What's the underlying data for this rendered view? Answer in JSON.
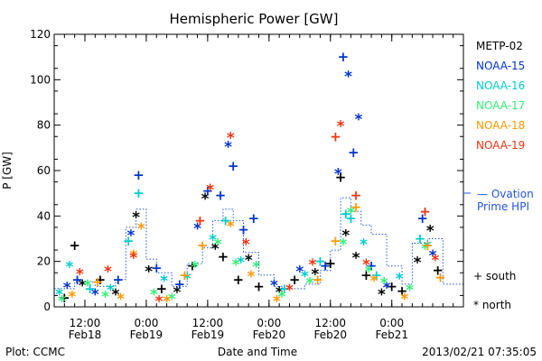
{
  "chart_data": {
    "type": "scatter",
    "title": "Hemispheric Power [GW]",
    "ylabel": "P [GW]",
    "xlabel": "Date and Time",
    "ylim": [
      0,
      120
    ],
    "xlim": [
      "2013-02-18T06:00",
      "2013-02-21T14:00"
    ],
    "yticks": [
      0,
      20,
      40,
      60,
      80,
      100,
      120
    ],
    "xticks": [
      {
        "t": "2013-02-18T12:00",
        "l1": "12:00",
        "l2": "Feb18"
      },
      {
        "t": "2013-02-19T00:00",
        "l1": "0:00",
        "l2": "Feb19"
      },
      {
        "t": "2013-02-19T12:00",
        "l1": "12:00",
        "l2": "Feb19"
      },
      {
        "t": "2013-02-20T00:00",
        "l1": "0:00",
        "l2": "Feb20"
      },
      {
        "t": "2013-02-20T12:00",
        "l1": "12:00",
        "l2": "Feb20"
      },
      {
        "t": "2013-02-21T00:00",
        "l1": "0:00",
        "l2": "Feb21"
      }
    ],
    "legend_position": "right",
    "series": [
      {
        "name": "METP-02",
        "color": "#000000",
        "points": [
          {
            "x": "2013-02-18T08:00",
            "y": 4,
            "m": "+"
          },
          {
            "x": "2013-02-18T10:00",
            "y": 27,
            "m": "+"
          },
          {
            "x": "2013-02-18T11:30",
            "y": 10,
            "m": "*"
          },
          {
            "x": "2013-02-18T15:00",
            "y": 12,
            "m": "+"
          },
          {
            "x": "2013-02-18T18:00",
            "y": 6,
            "m": "*"
          },
          {
            "x": "2013-02-18T22:00",
            "y": 40,
            "m": "*"
          },
          {
            "x": "2013-02-19T00:30",
            "y": 16,
            "m": "*"
          },
          {
            "x": "2013-02-19T03:00",
            "y": 8,
            "m": "+"
          },
          {
            "x": "2013-02-19T06:00",
            "y": 7,
            "m": "*"
          },
          {
            "x": "2013-02-19T09:00",
            "y": 18,
            "m": "+"
          },
          {
            "x": "2013-02-19T11:30",
            "y": 48,
            "m": "*"
          },
          {
            "x": "2013-02-19T13:30",
            "y": 26,
            "m": "*"
          },
          {
            "x": "2013-02-19T15:00",
            "y": 22,
            "m": "+"
          },
          {
            "x": "2013-02-19T18:00",
            "y": 12,
            "m": "+"
          },
          {
            "x": "2013-02-19T20:00",
            "y": 21,
            "m": "*"
          },
          {
            "x": "2013-02-19T22:00",
            "y": 9,
            "m": "+"
          },
          {
            "x": "2013-02-20T02:00",
            "y": 7,
            "m": "*"
          },
          {
            "x": "2013-02-20T05:00",
            "y": 12,
            "m": "+"
          },
          {
            "x": "2013-02-20T09:00",
            "y": 15,
            "m": "*"
          },
          {
            "x": "2013-02-20T12:00",
            "y": 19,
            "m": "+"
          },
          {
            "x": "2013-02-20T14:00",
            "y": 57,
            "m": "+"
          },
          {
            "x": "2013-02-20T15:00",
            "y": 32,
            "m": "*"
          },
          {
            "x": "2013-02-20T17:00",
            "y": 22,
            "m": "*"
          },
          {
            "x": "2013-02-20T19:00",
            "y": 14,
            "m": "+"
          },
          {
            "x": "2013-02-20T22:00",
            "y": 6,
            "m": "*"
          },
          {
            "x": "2013-02-21T00:00",
            "y": 9,
            "m": "+"
          },
          {
            "x": "2013-02-21T02:00",
            "y": 7,
            "m": "+"
          },
          {
            "x": "2013-02-21T05:00",
            "y": 20,
            "m": "*"
          },
          {
            "x": "2013-02-21T07:30",
            "y": 34,
            "m": "*"
          },
          {
            "x": "2013-02-21T09:00",
            "y": 16,
            "m": "+"
          }
        ]
      },
      {
        "name": "NOAA-15",
        "color": "#0033cc",
        "points": [
          {
            "x": "2013-02-18T08:30",
            "y": 9,
            "m": "*"
          },
          {
            "x": "2013-02-18T10:30",
            "y": 12,
            "m": "+"
          },
          {
            "x": "2013-02-18T14:00",
            "y": 6,
            "m": "*"
          },
          {
            "x": "2013-02-18T18:30",
            "y": 12,
            "m": "+"
          },
          {
            "x": "2013-02-18T21:00",
            "y": 32,
            "m": "*"
          },
          {
            "x": "2013-02-18T22:30",
            "y": 58,
            "m": "+"
          },
          {
            "x": "2013-02-19T02:00",
            "y": 17,
            "m": "+"
          },
          {
            "x": "2013-02-19T06:30",
            "y": 10,
            "m": "+"
          },
          {
            "x": "2013-02-19T10:00",
            "y": 35,
            "m": "*"
          },
          {
            "x": "2013-02-19T12:00",
            "y": 51,
            "m": "+"
          },
          {
            "x": "2013-02-19T14:30",
            "y": 49,
            "m": "+"
          },
          {
            "x": "2013-02-19T16:00",
            "y": 71,
            "m": "*"
          },
          {
            "x": "2013-02-19T17:00",
            "y": 62,
            "m": "+"
          },
          {
            "x": "2013-02-19T19:00",
            "y": 34,
            "m": "+"
          },
          {
            "x": "2013-02-19T21:00",
            "y": 39,
            "m": "+"
          },
          {
            "x": "2013-02-20T01:00",
            "y": 10,
            "m": "*"
          },
          {
            "x": "2013-02-20T06:00",
            "y": 16,
            "m": "*"
          },
          {
            "x": "2013-02-20T11:00",
            "y": 18,
            "m": "+"
          },
          {
            "x": "2013-02-20T13:30",
            "y": 59,
            "m": "*"
          },
          {
            "x": "2013-02-20T14:30",
            "y": 110,
            "m": "+"
          },
          {
            "x": "2013-02-20T15:30",
            "y": 102,
            "m": "*"
          },
          {
            "x": "2013-02-20T16:30",
            "y": 68,
            "m": "+"
          },
          {
            "x": "2013-02-20T17:30",
            "y": 83,
            "m": "*"
          },
          {
            "x": "2013-02-20T20:00",
            "y": 18,
            "m": "+"
          },
          {
            "x": "2013-02-20T23:00",
            "y": 9,
            "m": "*"
          },
          {
            "x": "2013-02-21T06:00",
            "y": 39,
            "m": "+"
          },
          {
            "x": "2013-02-21T08:00",
            "y": 23,
            "m": "*"
          }
        ]
      },
      {
        "name": "NOAA-16",
        "color": "#00cccc",
        "points": [
          {
            "x": "2013-02-18T07:00",
            "y": 6,
            "m": "*"
          },
          {
            "x": "2013-02-18T09:00",
            "y": 18,
            "m": "*"
          },
          {
            "x": "2013-02-18T13:00",
            "y": 8,
            "m": "+"
          },
          {
            "x": "2013-02-18T17:00",
            "y": 8,
            "m": "*"
          },
          {
            "x": "2013-02-18T20:30",
            "y": 29,
            "m": "+"
          },
          {
            "x": "2013-02-18T22:30",
            "y": 50,
            "m": "+"
          },
          {
            "x": "2013-02-19T03:30",
            "y": 12,
            "m": "*"
          },
          {
            "x": "2013-02-19T08:00",
            "y": 13,
            "m": "*"
          },
          {
            "x": "2013-02-19T13:00",
            "y": 30,
            "m": "*"
          },
          {
            "x": "2013-02-19T15:30",
            "y": 38,
            "m": "+"
          },
          {
            "x": "2013-02-19T18:30",
            "y": 20,
            "m": "*"
          },
          {
            "x": "2013-02-20T03:00",
            "y": 8,
            "m": "+"
          },
          {
            "x": "2013-02-20T07:00",
            "y": 14,
            "m": "*"
          },
          {
            "x": "2013-02-20T10:00",
            "y": 20,
            "m": "+"
          },
          {
            "x": "2013-02-20T15:00",
            "y": 41,
            "m": "+"
          },
          {
            "x": "2013-02-20T16:00",
            "y": 39,
            "m": "+"
          },
          {
            "x": "2013-02-20T18:30",
            "y": 28,
            "m": "*"
          },
          {
            "x": "2013-02-20T21:00",
            "y": 14,
            "m": "+"
          },
          {
            "x": "2013-02-21T01:30",
            "y": 13,
            "m": "*"
          },
          {
            "x": "2013-02-21T05:30",
            "y": 30,
            "m": "+"
          },
          {
            "x": "2013-02-21T07:00",
            "y": 27,
            "m": "*"
          }
        ]
      },
      {
        "name": "NOAA-17",
        "color": "#33ee77",
        "points": [
          {
            "x": "2013-02-18T07:30",
            "y": 3,
            "m": "*"
          },
          {
            "x": "2013-02-18T12:30",
            "y": 10,
            "m": "*"
          },
          {
            "x": "2013-02-18T16:00",
            "y": 5,
            "m": "*"
          },
          {
            "x": "2013-02-19T01:30",
            "y": 6,
            "m": "*"
          },
          {
            "x": "2013-02-19T05:00",
            "y": 4,
            "m": "*"
          },
          {
            "x": "2013-02-19T09:30",
            "y": 18,
            "m": "*"
          },
          {
            "x": "2013-02-19T14:00",
            "y": 28,
            "m": "*"
          },
          {
            "x": "2013-02-19T17:30",
            "y": 19,
            "m": "*"
          },
          {
            "x": "2013-02-19T21:30",
            "y": 18,
            "m": "*"
          },
          {
            "x": "2013-02-20T02:30",
            "y": 5,
            "m": "*"
          },
          {
            "x": "2013-02-20T08:00",
            "y": 11,
            "m": "*"
          },
          {
            "x": "2013-02-20T14:30",
            "y": 28,
            "m": "*"
          },
          {
            "x": "2013-02-20T16:00",
            "y": 42,
            "m": "*"
          },
          {
            "x": "2013-02-20T19:30",
            "y": 16,
            "m": "*"
          },
          {
            "x": "2013-02-20T22:30",
            "y": 11,
            "m": "*"
          },
          {
            "x": "2013-02-21T03:30",
            "y": 8,
            "m": "*"
          },
          {
            "x": "2013-02-21T06:30",
            "y": 26,
            "m": "*"
          }
        ]
      },
      {
        "name": "NOAA-18",
        "color": "#ff9900",
        "points": [
          {
            "x": "2013-02-18T09:30",
            "y": 5,
            "m": "*"
          },
          {
            "x": "2013-02-18T14:30",
            "y": 11,
            "m": "+"
          },
          {
            "x": "2013-02-18T19:00",
            "y": 4,
            "m": "*"
          },
          {
            "x": "2013-02-18T21:30",
            "y": 23,
            "m": "*"
          },
          {
            "x": "2013-02-18T23:00",
            "y": 35,
            "m": "*"
          },
          {
            "x": "2013-02-19T04:00",
            "y": 3,
            "m": "*"
          },
          {
            "x": "2013-02-19T07:30",
            "y": 14,
            "m": "+"
          },
          {
            "x": "2013-02-19T11:00",
            "y": 27,
            "m": "+"
          },
          {
            "x": "2013-02-19T16:30",
            "y": 36,
            "m": "*"
          },
          {
            "x": "2013-02-19T20:30",
            "y": 14,
            "m": "*"
          },
          {
            "x": "2013-02-20T01:30",
            "y": 3,
            "m": "*"
          },
          {
            "x": "2013-02-20T09:30",
            "y": 12,
            "m": "+"
          },
          {
            "x": "2013-02-20T13:00",
            "y": 29,
            "m": "+"
          },
          {
            "x": "2013-02-20T17:00",
            "y": 44,
            "m": "+"
          },
          {
            "x": "2013-02-20T20:30",
            "y": 12,
            "m": "*"
          },
          {
            "x": "2013-02-21T02:30",
            "y": 4,
            "m": "*"
          },
          {
            "x": "2013-02-21T07:00",
            "y": 27,
            "m": "+"
          },
          {
            "x": "2013-02-21T09:30",
            "y": 13,
            "m": "+"
          }
        ]
      },
      {
        "name": "NOAA-19",
        "color": "#ee3311",
        "points": [
          {
            "x": "2013-02-18T11:00",
            "y": 15,
            "m": "*"
          },
          {
            "x": "2013-02-18T16:30",
            "y": 16,
            "m": "*"
          },
          {
            "x": "2013-02-18T21:30",
            "y": 22,
            "m": "*"
          },
          {
            "x": "2013-02-19T02:30",
            "y": 3,
            "m": "*"
          },
          {
            "x": "2013-02-19T10:30",
            "y": 38,
            "m": "+"
          },
          {
            "x": "2013-02-19T12:30",
            "y": 52,
            "m": "*"
          },
          {
            "x": "2013-02-19T16:30",
            "y": 75,
            "m": "*"
          },
          {
            "x": "2013-02-19T19:30",
            "y": 28,
            "m": "*"
          },
          {
            "x": "2013-02-20T04:00",
            "y": 8,
            "m": "*"
          },
          {
            "x": "2013-02-20T08:30",
            "y": 19,
            "m": "*"
          },
          {
            "x": "2013-02-20T13:00",
            "y": 75,
            "m": "+"
          },
          {
            "x": "2013-02-20T14:00",
            "y": 80,
            "m": "*"
          },
          {
            "x": "2013-02-20T17:00",
            "y": 49,
            "m": "+"
          },
          {
            "x": "2013-02-20T19:00",
            "y": 19,
            "m": "*"
          },
          {
            "x": "2013-02-21T06:30",
            "y": 42,
            "m": "+"
          },
          {
            "x": "2013-02-21T08:30",
            "y": 21,
            "m": "*"
          }
        ]
      }
    ],
    "ovation": {
      "name": "Ovation Prime HPI",
      "color": "#2255dd",
      "x": [
        "2013-02-18T06:00",
        "2013-02-18T10:00",
        "2013-02-18T14:00",
        "2013-02-18T18:00",
        "2013-02-18T20:00",
        "2013-02-18T22:00",
        "2013-02-19T00:00",
        "2013-02-19T02:00",
        "2013-02-19T05:00",
        "2013-02-19T08:00",
        "2013-02-19T11:00",
        "2013-02-19T13:00",
        "2013-02-19T15:00",
        "2013-02-19T17:00",
        "2013-02-19T19:00",
        "2013-02-19T22:00",
        "2013-02-20T01:00",
        "2013-02-20T04:00",
        "2013-02-20T07:00",
        "2013-02-20T10:00",
        "2013-02-20T12:00",
        "2013-02-20T14:00",
        "2013-02-20T16:00",
        "2013-02-20T18:00",
        "2013-02-20T20:00",
        "2013-02-20T23:00",
        "2013-02-21T02:00",
        "2013-02-21T04:00",
        "2013-02-21T07:00",
        "2013-02-21T10:00"
      ],
      "y": [
        8,
        11,
        9,
        12,
        35,
        43,
        21,
        15,
        9,
        19,
        26,
        38,
        43,
        38,
        24,
        14,
        9,
        8,
        10,
        16,
        25,
        48,
        42,
        36,
        32,
        18,
        10,
        28,
        30,
        10
      ]
    },
    "legend": {
      "ovation_label_1": "— Ovation",
      "ovation_label_2": "Prime HPI",
      "south_label": "+ south",
      "north_label": "* north"
    },
    "footer": {
      "left": "Plot: CCMC",
      "right": "2013/02/21 07:35:05"
    }
  }
}
